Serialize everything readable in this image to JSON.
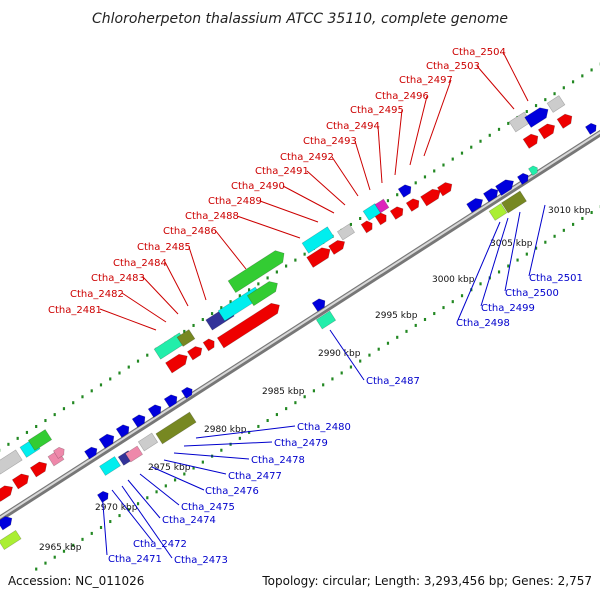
{
  "title": "Chloroherpeton thalassium ATCC 35110, complete genome",
  "footer": {
    "accession": "Accession: NC_011026",
    "summary": "Topology: circular; Length: 3,293,456 bp; Genes: 2,757"
  },
  "ticks": [
    "2965 kbp",
    "2970 kbp",
    "2975 kbp",
    "2980 kbp",
    "2985 kbp",
    "2990 kbp",
    "2995 kbp",
    "3000 kbp",
    "3005 kbp",
    "3010 kbp"
  ],
  "colors": {
    "red": "#ee0000",
    "blue": "#0000dd",
    "cyan": "#00eeee",
    "green": "#33cc33",
    "olive": "#778822",
    "gray": "#cccccc",
    "pink": "#ee88aa",
    "magenta": "#dd22bb",
    "lime": "#aaee33",
    "aqua": "#22eeaa",
    "navy": "#333399",
    "backbone": "#888888",
    "dots": "#228822"
  },
  "labels_forward": [
    "Ctha_2481",
    "Ctha_2482",
    "Ctha_2483",
    "Ctha_2484",
    "Ctha_2485",
    "Ctha_2486",
    "Ctha_2488",
    "Ctha_2489",
    "Ctha_2490",
    "Ctha_2491",
    "Ctha_2492",
    "Ctha_2493",
    "Ctha_2494",
    "Ctha_2495",
    "Ctha_2496",
    "Ctha_2497",
    "Ctha_2503",
    "Ctha_2504"
  ],
  "labels_reverse": [
    "Ctha_2471",
    "Ctha_2472",
    "Ctha_2473",
    "Ctha_2474",
    "Ctha_2475",
    "Ctha_2476",
    "Ctha_2477",
    "Ctha_2478",
    "Ctha_2479",
    "Ctha_2480",
    "Ctha_2487",
    "Ctha_2498",
    "Ctha_2499",
    "Ctha_2500",
    "Ctha_2501"
  ]
}
